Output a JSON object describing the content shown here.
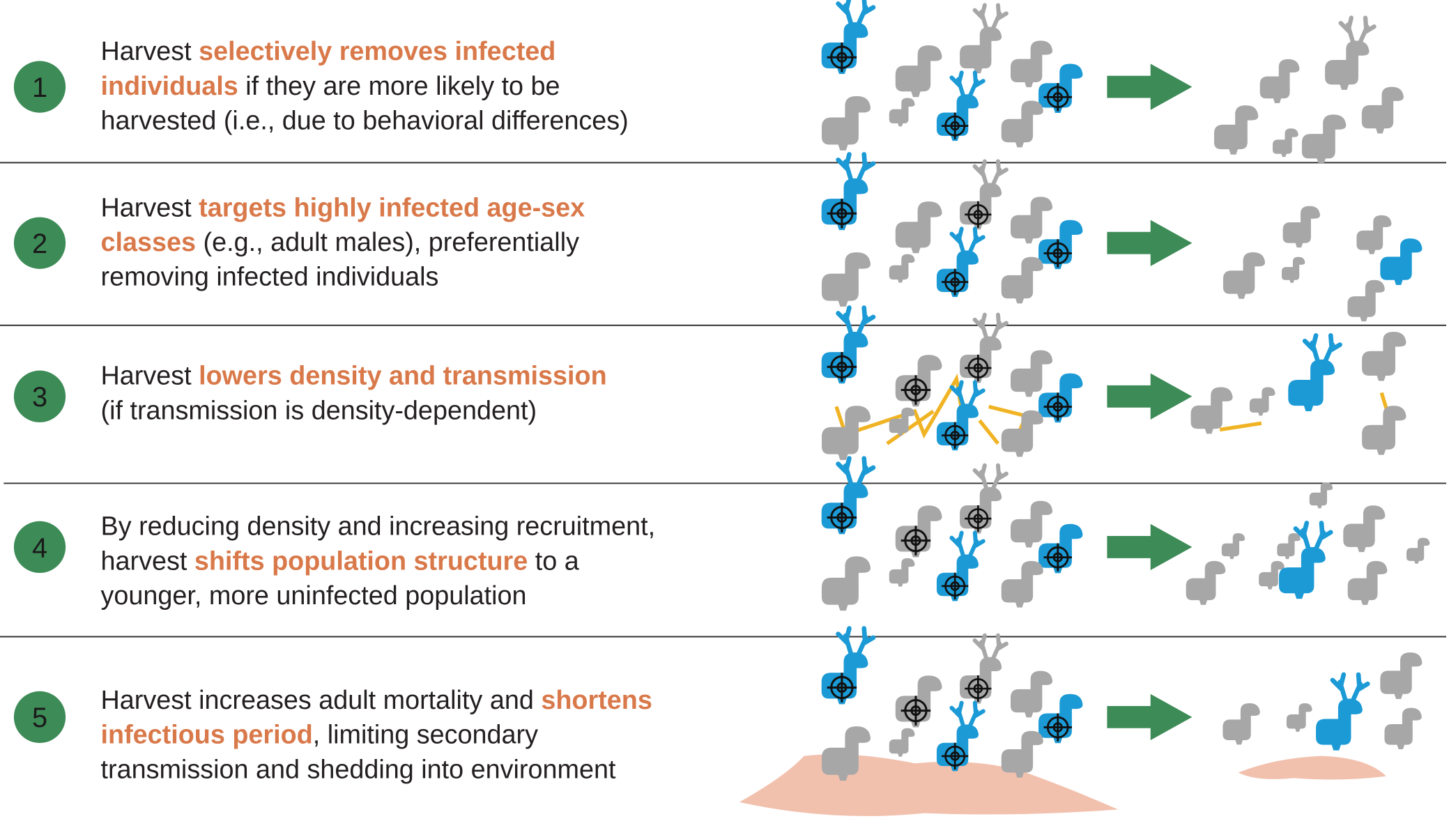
{
  "rows": [
    {
      "number": "1",
      "lines": [
        [
          {
            "text": "Harvest ",
            "style": "plain"
          },
          {
            "text": "selectively removes infected",
            "style": "highlight"
          }
        ],
        [
          {
            "text": "individuals",
            "style": "highlight"
          },
          {
            "text": " if they are more likely to be",
            "style": "plain"
          }
        ],
        [
          {
            "text": "harvested (i.e., due to behavioral differences)",
            "style": "plain"
          }
        ]
      ]
    },
    {
      "number": "2",
      "lines": [
        [
          {
            "text": "Harvest ",
            "style": "plain"
          },
          {
            "text": "targets highly infected age-sex",
            "style": "highlight"
          }
        ],
        [
          {
            "text": "classes",
            "style": "highlight"
          },
          {
            "text": " (e.g., adult males), preferentially",
            "style": "plain"
          }
        ],
        [
          {
            "text": "removing infected individuals",
            "style": "plain"
          }
        ]
      ]
    },
    {
      "number": "3",
      "lines": [
        [
          {
            "text": "Harvest ",
            "style": "plain"
          },
          {
            "text": "lowers density and transmission",
            "style": "highlight"
          }
        ],
        [
          {
            "text": "(if transmission is density-dependent)",
            "style": "plain"
          }
        ]
      ]
    },
    {
      "number": "4",
      "lines": [
        [
          {
            "text": "By reducing density and increasing recruitment,",
            "style": "plain"
          }
        ],
        [
          {
            "text": "harvest ",
            "style": "plain"
          },
          {
            "text": "shifts population structure",
            "style": "highlight"
          },
          {
            "text": " to a",
            "style": "plain"
          }
        ],
        [
          {
            "text": "younger, more uninfected population",
            "style": "plain"
          }
        ]
      ]
    },
    {
      "number": "5",
      "lines": [
        [
          {
            "text": "Harvest increases adult mortality and ",
            "style": "plain"
          },
          {
            "text": "shortens",
            "style": "highlight"
          }
        ],
        [
          {
            "text": "infectious period",
            "style": "highlight"
          },
          {
            "text": ", limiting secondary",
            "style": "plain"
          }
        ],
        [
          {
            "text": "transmission and shedding into environment",
            "style": "plain"
          }
        ]
      ]
    }
  ]
}
